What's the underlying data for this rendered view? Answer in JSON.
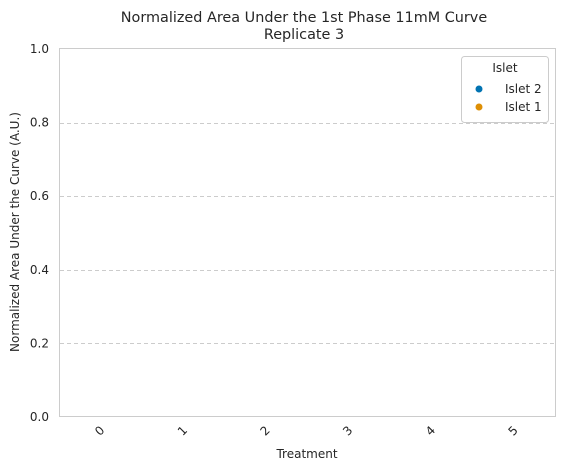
{
  "chart_data": {
    "type": "scatter",
    "title": "Normalized Area Under the 1st Phase 11mM Curve",
    "subtitle": "Replicate 3",
    "xlabel": "Treatment",
    "ylabel": "Normalized Area Under the Curve (A.U.)",
    "categories": [
      "0",
      "1",
      "2",
      "3",
      "4",
      "5"
    ],
    "ylim": [
      0,
      1
    ],
    "yticks": [
      "0.0",
      "0.2",
      "0.4",
      "0.6",
      "0.8",
      "1.0"
    ],
    "grid": "y-dashed",
    "legend": {
      "title": "Islet",
      "placement": "top-right",
      "entries": [
        {
          "name": "Islet 2",
          "color": "#0173b2"
        },
        {
          "name": "Islet 1",
          "color": "#de8f05"
        }
      ]
    },
    "series": [
      {
        "name": "Islet 2",
        "color": "#0173b2",
        "values": []
      },
      {
        "name": "Islet 1",
        "color": "#de8f05",
        "values": []
      }
    ]
  }
}
